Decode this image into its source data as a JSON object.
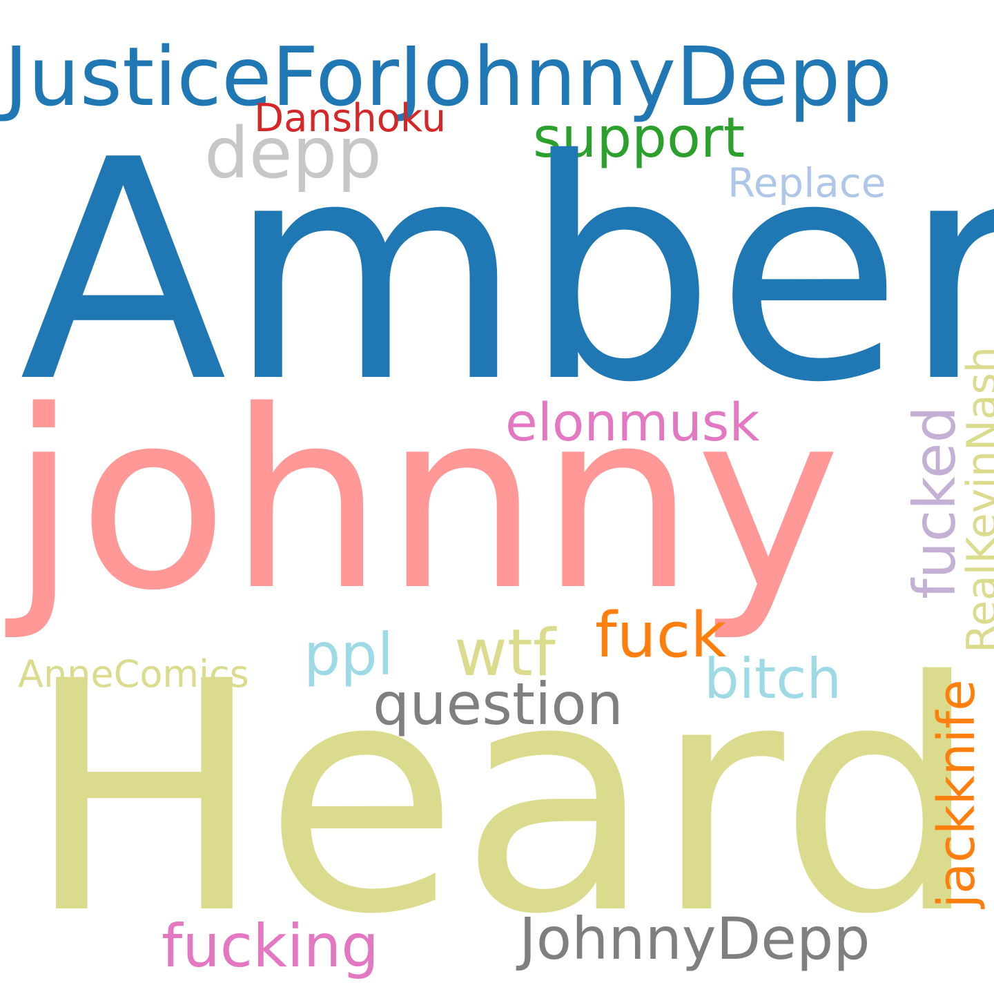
{
  "words": [
    {
      "text": "JusticeForJohnnyDepp",
      "color": "#1f77b4"
    },
    {
      "text": "Danshoku",
      "color": "#d62728"
    },
    {
      "text": "depp",
      "color": "#c7c7c7"
    },
    {
      "text": "support",
      "color": "#2ca02c"
    },
    {
      "text": "Replace",
      "color": "#aec7e8"
    },
    {
      "text": "Amber",
      "color": "#1f77b4"
    },
    {
      "text": "johnny",
      "color": "#ff9896"
    },
    {
      "text": "elonmusk",
      "color": "#e377c2"
    },
    {
      "text": "fucked",
      "color": "#c5b0d5"
    },
    {
      "text": "RealKevinNash",
      "color": "#dbdb8d"
    },
    {
      "text": "fuck",
      "color": "#ff7f0e"
    },
    {
      "text": "ppl",
      "color": "#9edae5"
    },
    {
      "text": "wtf",
      "color": "#dbdb8d"
    },
    {
      "text": "bitch",
      "color": "#9edae5"
    },
    {
      "text": "AnneComics",
      "color": "#dbdb8d"
    },
    {
      "text": "question",
      "color": "#7f7f7f"
    },
    {
      "text": "Heard",
      "color": "#dbdb8d"
    },
    {
      "text": "jackknife",
      "color": "#ff7f0e"
    },
    {
      "text": "fucking",
      "color": "#e377c2"
    },
    {
      "text": "JohnnyDepp",
      "color": "#7f7f7f"
    }
  ]
}
